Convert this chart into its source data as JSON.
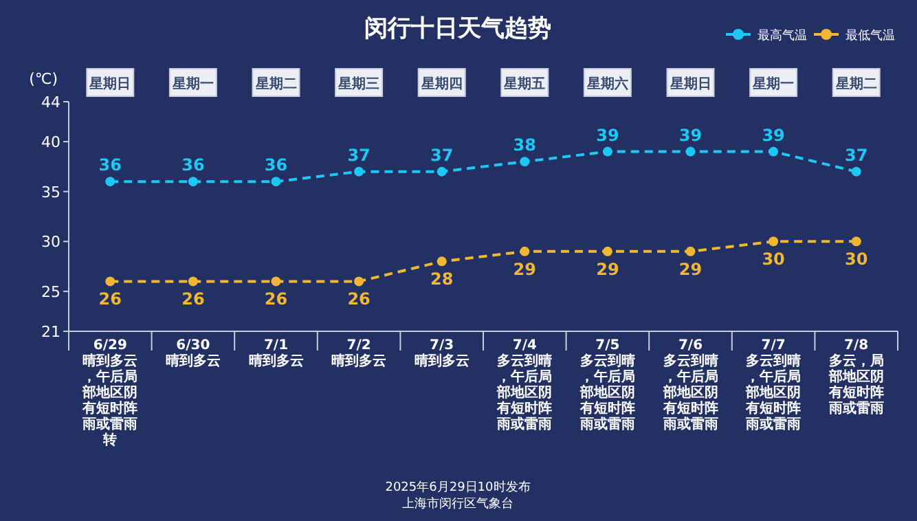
{
  "chart_data": {
    "type": "line",
    "title": "闵行十日天气趋势",
    "ylabel": "(℃)",
    "categories": [
      "6/29\n晴到多云，午后局部地区阴有短时阵雨或雷雨转",
      "6/30\n晴到多云",
      "7/1\n晴到多云",
      "7/2\n晴到多云",
      "7/3\n晴到多云",
      "7/4\n多云到晴，午后局部地区阴有短时阵雨或雷雨",
      "7/5\n多云到晴，午后局部地区阴有短时阵雨或雷雨",
      "7/6\n多云到晴，午后局部地区阴有短时阵雨或雷雨",
      "7/7\n多云到晴，午后局部地区阴有短时阵雨或雷雨",
      "7/8\n多云，局部地区阴有短时阵雨或雷雨"
    ],
    "series": [
      {
        "name": "最高气温",
        "color": "#1ec8f5",
        "values": [
          36,
          36,
          36,
          37,
          37,
          38,
          39,
          39,
          39,
          37
        ]
      },
      {
        "name": "最低气温",
        "color": "#f0b832",
        "values": [
          26,
          26,
          26,
          26,
          28,
          29,
          29,
          29,
          30,
          30
        ]
      }
    ],
    "ylim": [
      21,
      44
    ],
    "yticks": [
      21,
      25,
      30,
      35,
      40,
      44
    ],
    "grid": false,
    "legend": "top right",
    "marker": "circle",
    "line_style": "dashed",
    "data_labels": true,
    "annotations": [
      "星期日",
      "星期一",
      "星期二",
      "星期三",
      "星期四",
      "星期五",
      "星期六",
      "星期日",
      "星期一",
      "星期二",
      "2025年6月29日10时发布",
      "上海市闵行区气象台"
    ]
  }
}
